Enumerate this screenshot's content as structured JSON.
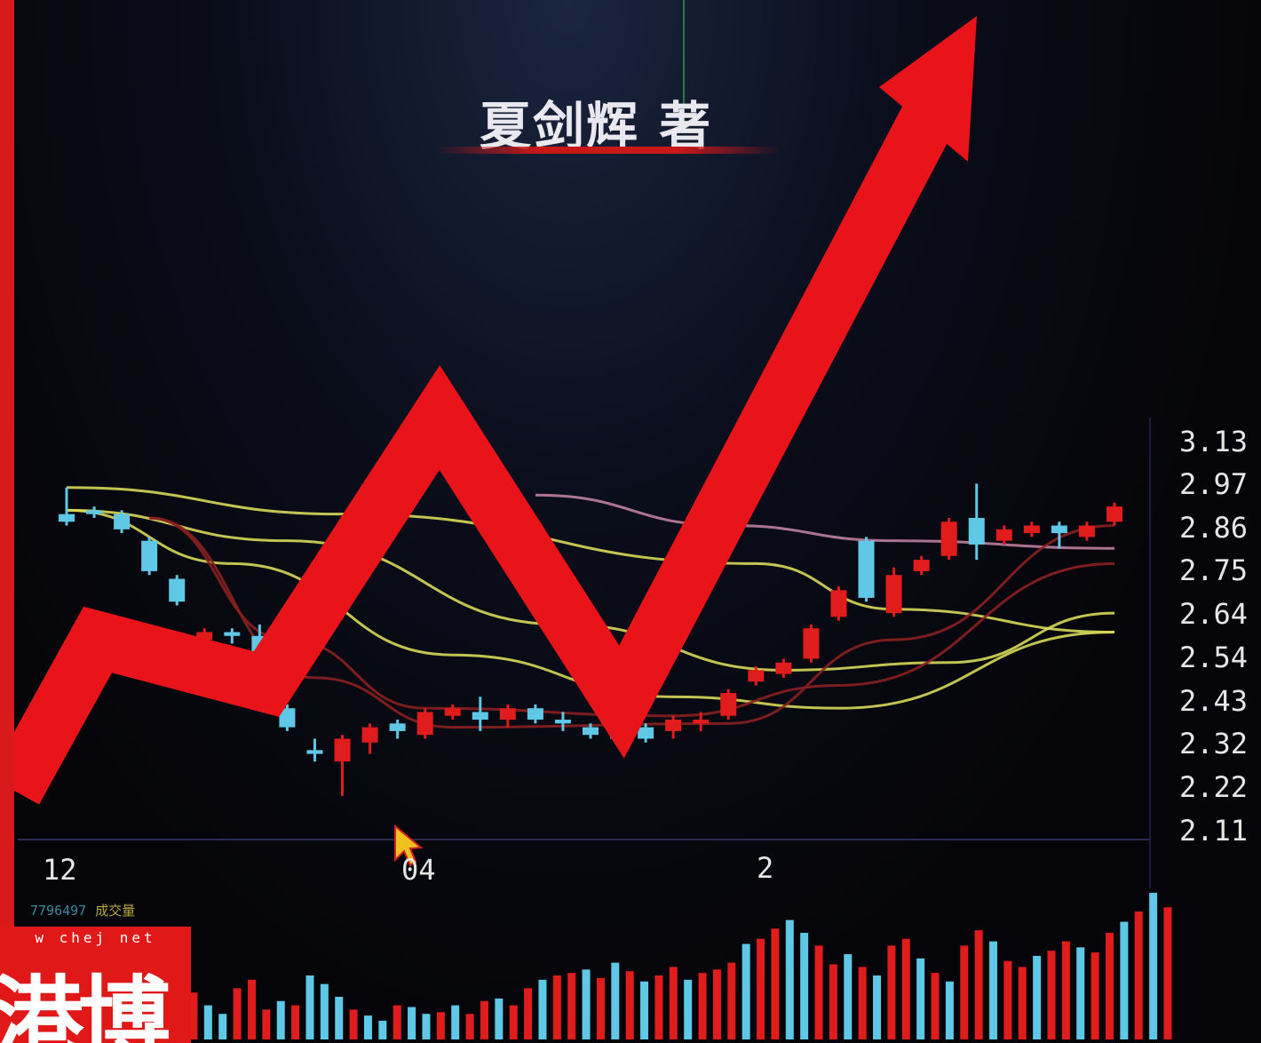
{
  "author": {
    "name": "夏剑辉",
    "suffix": "著"
  },
  "watermark": {
    "url": "w chej net",
    "logo": "港博"
  },
  "chart_data": {
    "type": "candlestick",
    "price_ticks": [
      "3.13",
      "2.97",
      "2.86",
      "2.75",
      "2.64",
      "2.54",
      "2.43",
      "2.32",
      "2.22",
      "2.11"
    ],
    "date_ticks": [
      "12",
      "04",
      "2"
    ],
    "volume_legend": {
      "value": "7796497",
      "label": "成交量"
    },
    "colors": {
      "up": "#e01c1c",
      "down": "#5ec8e6",
      "arrow": "#e8141a",
      "ma_yellow": "#d8d85a",
      "ma_pink": "#c080a0",
      "ma_dark": "#8a2020"
    },
    "candles": [
      {
        "o": 2.93,
        "h": 3.0,
        "l": 2.9,
        "c": 2.91
      },
      {
        "o": 2.94,
        "h": 2.95,
        "l": 2.92,
        "c": 2.93
      },
      {
        "o": 2.93,
        "h": 2.94,
        "l": 2.88,
        "c": 2.89
      },
      {
        "o": 2.86,
        "h": 2.87,
        "l": 2.77,
        "c": 2.78
      },
      {
        "o": 2.76,
        "h": 2.77,
        "l": 2.69,
        "c": 2.7
      },
      {
        "o": 2.6,
        "h": 2.63,
        "l": 2.58,
        "c": 2.62
      },
      {
        "o": 2.62,
        "h": 2.63,
        "l": 2.59,
        "c": 2.61
      },
      {
        "o": 2.61,
        "h": 2.64,
        "l": 2.56,
        "c": 2.57
      },
      {
        "o": 2.42,
        "h": 2.43,
        "l": 2.36,
        "c": 2.37
      },
      {
        "o": 2.31,
        "h": 2.34,
        "l": 2.28,
        "c": 2.3
      },
      {
        "o": 2.28,
        "h": 2.35,
        "l": 2.19,
        "c": 2.34
      },
      {
        "o": 2.33,
        "h": 2.38,
        "l": 2.3,
        "c": 2.37
      },
      {
        "o": 2.38,
        "h": 2.39,
        "l": 2.34,
        "c": 2.36
      },
      {
        "o": 2.35,
        "h": 2.42,
        "l": 2.34,
        "c": 2.41
      },
      {
        "o": 2.4,
        "h": 2.43,
        "l": 2.39,
        "c": 2.42
      },
      {
        "o": 2.41,
        "h": 2.45,
        "l": 2.36,
        "c": 2.39
      },
      {
        "o": 2.39,
        "h": 2.43,
        "l": 2.37,
        "c": 2.42
      },
      {
        "o": 2.42,
        "h": 2.43,
        "l": 2.38,
        "c": 2.39
      },
      {
        "o": 2.39,
        "h": 2.41,
        "l": 2.36,
        "c": 2.38
      },
      {
        "o": 2.37,
        "h": 2.38,
        "l": 2.34,
        "c": 2.35
      },
      {
        "o": 2.35,
        "h": 2.36,
        "l": 2.33,
        "c": 2.34
      },
      {
        "o": 2.37,
        "h": 2.38,
        "l": 2.33,
        "c": 2.34
      },
      {
        "o": 2.36,
        "h": 2.4,
        "l": 2.34,
        "c": 2.39
      },
      {
        "o": 2.38,
        "h": 2.41,
        "l": 2.36,
        "c": 2.39
      },
      {
        "o": 2.4,
        "h": 2.47,
        "l": 2.39,
        "c": 2.46
      },
      {
        "o": 2.49,
        "h": 2.53,
        "l": 2.48,
        "c": 2.52
      },
      {
        "o": 2.51,
        "h": 2.55,
        "l": 2.5,
        "c": 2.54
      },
      {
        "o": 2.55,
        "h": 2.64,
        "l": 2.54,
        "c": 2.63
      },
      {
        "o": 2.66,
        "h": 2.74,
        "l": 2.65,
        "c": 2.73
      },
      {
        "o": 2.86,
        "h": 2.87,
        "l": 2.7,
        "c": 2.71
      },
      {
        "o": 2.67,
        "h": 2.79,
        "l": 2.66,
        "c": 2.77
      },
      {
        "o": 2.78,
        "h": 2.82,
        "l": 2.77,
        "c": 2.81
      },
      {
        "o": 2.82,
        "h": 2.92,
        "l": 2.81,
        "c": 2.91
      },
      {
        "o": 2.92,
        "h": 3.01,
        "l": 2.81,
        "c": 2.85
      },
      {
        "o": 2.86,
        "h": 2.9,
        "l": 2.85,
        "c": 2.89
      },
      {
        "o": 2.88,
        "h": 2.91,
        "l": 2.87,
        "c": 2.9
      },
      {
        "o": 2.9,
        "h": 2.91,
        "l": 2.84,
        "c": 2.88
      },
      {
        "o": 2.87,
        "h": 2.91,
        "l": 2.86,
        "c": 2.9
      },
      {
        "o": 2.91,
        "h": 2.96,
        "l": 2.9,
        "c": 2.95
      }
    ],
    "moving_averages": [
      {
        "color": "#d8d85a",
        "values": [
          [
            0,
            3.0
          ],
          [
            10,
            2.93
          ],
          [
            25,
            2.8
          ],
          [
            30,
            2.68
          ],
          [
            38,
            2.62
          ]
        ]
      },
      {
        "color": "#d8d85a",
        "values": [
          [
            0,
            2.94
          ],
          [
            8,
            2.86
          ],
          [
            18,
            2.64
          ],
          [
            26,
            2.52
          ],
          [
            32,
            2.54
          ],
          [
            38,
            2.67
          ]
        ]
      },
      {
        "color": "#d8d85a",
        "values": [
          [
            0,
            2.94
          ],
          [
            6,
            2.8
          ],
          [
            14,
            2.56
          ],
          [
            22,
            2.45
          ],
          [
            28,
            2.42
          ],
          [
            38,
            2.62
          ]
        ]
      },
      {
        "color": "#c080a0",
        "values": [
          [
            17,
            2.98
          ],
          [
            24,
            2.9
          ],
          [
            30,
            2.86
          ],
          [
            38,
            2.84
          ]
        ]
      },
      {
        "color": "#8a2020",
        "values": [
          [
            3,
            2.92
          ],
          [
            9,
            2.5
          ],
          [
            14,
            2.37
          ],
          [
            24,
            2.38
          ],
          [
            30,
            2.6
          ],
          [
            38,
            2.9
          ]
        ]
      },
      {
        "color": "#8a2020",
        "values": [
          [
            3,
            2.92
          ],
          [
            8,
            2.6
          ],
          [
            13,
            2.42
          ],
          [
            22,
            2.4
          ],
          [
            28,
            2.48
          ],
          [
            38,
            2.8
          ]
        ]
      }
    ],
    "volume": [
      {
        "v": 55,
        "up": true
      },
      {
        "v": 40,
        "up": false
      },
      {
        "v": 30,
        "up": false
      },
      {
        "v": 60,
        "up": true
      },
      {
        "v": 70,
        "up": true
      },
      {
        "v": 35,
        "up": true
      },
      {
        "v": 45,
        "up": false
      },
      {
        "v": 40,
        "up": true
      },
      {
        "v": 75,
        "up": false
      },
      {
        "v": 65,
        "up": false
      },
      {
        "v": 50,
        "up": false
      },
      {
        "v": 35,
        "up": true
      },
      {
        "v": 28,
        "up": false
      },
      {
        "v": 22,
        "up": false
      },
      {
        "v": 40,
        "up": true
      },
      {
        "v": 38,
        "up": false
      },
      {
        "v": 30,
        "up": false
      },
      {
        "v": 32,
        "up": true
      },
      {
        "v": 40,
        "up": false
      },
      {
        "v": 30,
        "up": true
      },
      {
        "v": 45,
        "up": true
      },
      {
        "v": 48,
        "up": false
      },
      {
        "v": 40,
        "up": true
      },
      {
        "v": 60,
        "up": true
      },
      {
        "v": 70,
        "up": false
      },
      {
        "v": 75,
        "up": true
      },
      {
        "v": 78,
        "up": true
      },
      {
        "v": 82,
        "up": false
      },
      {
        "v": 72,
        "up": true
      },
      {
        "v": 90,
        "up": false
      },
      {
        "v": 80,
        "up": true
      },
      {
        "v": 68,
        "up": false
      },
      {
        "v": 75,
        "up": true
      },
      {
        "v": 85,
        "up": true
      },
      {
        "v": 70,
        "up": false
      },
      {
        "v": 78,
        "up": true
      },
      {
        "v": 82,
        "up": true
      },
      {
        "v": 90,
        "up": true
      },
      {
        "v": 112,
        "up": false
      },
      {
        "v": 118,
        "up": true
      },
      {
        "v": 130,
        "up": true
      },
      {
        "v": 140,
        "up": false
      },
      {
        "v": 125,
        "up": false
      },
      {
        "v": 110,
        "up": true
      },
      {
        "v": 88,
        "up": true
      },
      {
        "v": 100,
        "up": false
      },
      {
        "v": 85,
        "up": true
      },
      {
        "v": 75,
        "up": false
      },
      {
        "v": 110,
        "up": true
      },
      {
        "v": 118,
        "up": true
      },
      {
        "v": 95,
        "up": false
      },
      {
        "v": 78,
        "up": true
      },
      {
        "v": 68,
        "up": false
      },
      {
        "v": 110,
        "up": true
      },
      {
        "v": 128,
        "up": true
      },
      {
        "v": 115,
        "up": false
      },
      {
        "v": 92,
        "up": true
      },
      {
        "v": 85,
        "up": true
      },
      {
        "v": 98,
        "up": false
      },
      {
        "v": 104,
        "up": true
      },
      {
        "v": 115,
        "up": true
      },
      {
        "v": 108,
        "up": false
      },
      {
        "v": 102,
        "up": true
      },
      {
        "v": 125,
        "up": true
      },
      {
        "v": 138,
        "up": false
      },
      {
        "v": 150,
        "up": true
      },
      {
        "v": 172,
        "up": false
      },
      {
        "v": 155,
        "up": true
      }
    ]
  }
}
